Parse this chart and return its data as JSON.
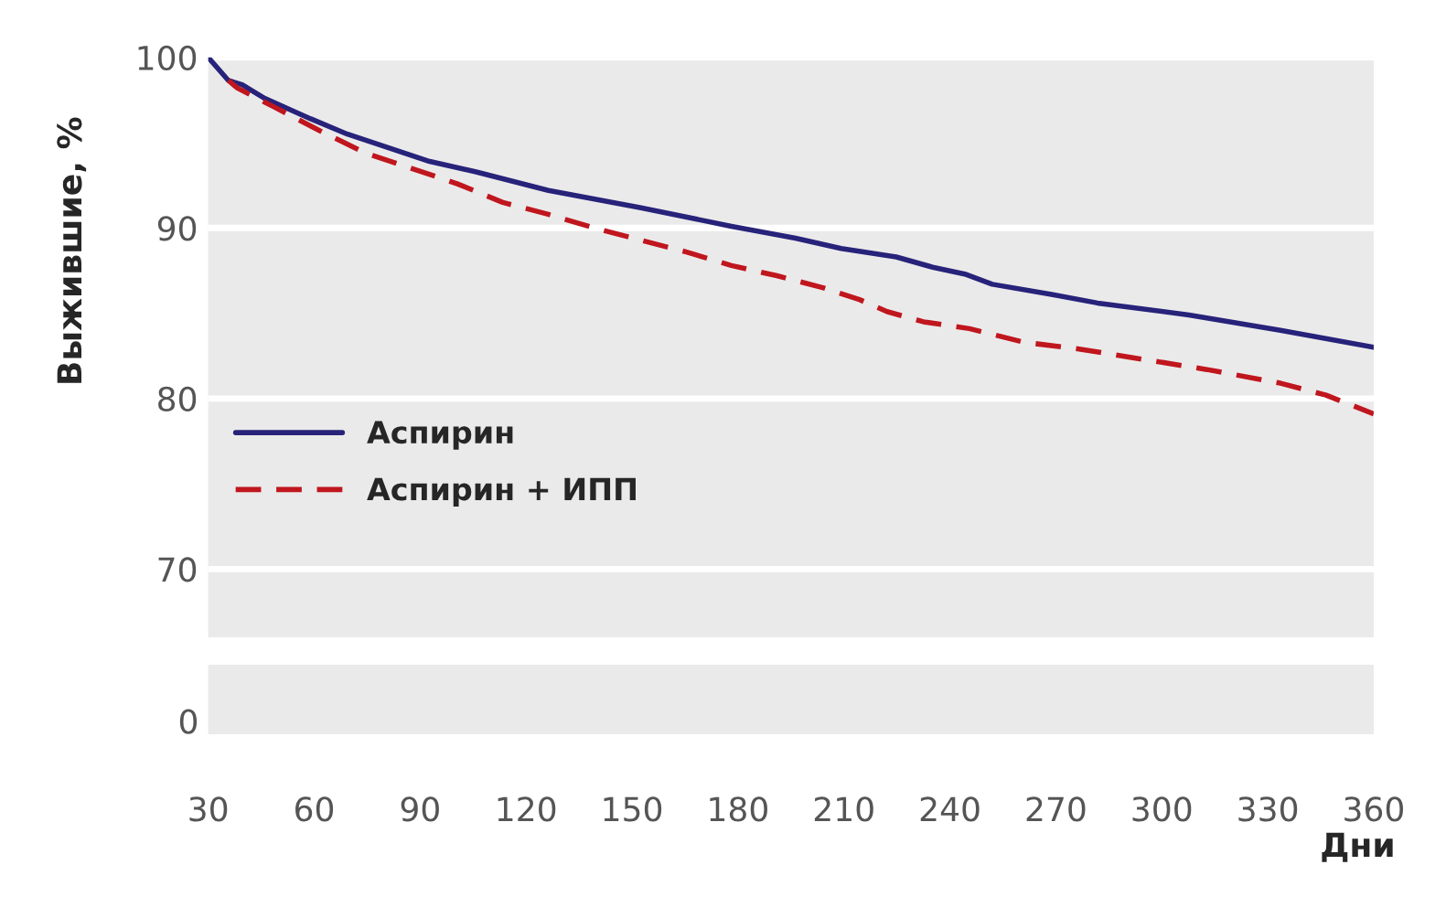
{
  "chart_data": {
    "type": "line",
    "ylabel": "Выжившие, %",
    "xlabel": "Дни",
    "xlim": [
      30,
      360
    ],
    "ylim": [
      66,
      100
    ],
    "yticks": [
      70,
      80,
      90,
      100
    ],
    "xticks": [
      30,
      60,
      90,
      120,
      150,
      180,
      210,
      240,
      270,
      300,
      330,
      360
    ],
    "grid": "y",
    "legend": "center left",
    "annotations": [
      "0"
    ],
    "series": [
      {
        "name": "Аспирин",
        "color": "#27237a",
        "line_style": "solid",
        "x": [
          30,
          35.7,
          39.6,
          46,
          59,
          69.4,
          79.7,
          92.7,
          105.6,
          126.3,
          152.2,
          178.1,
          196.3,
          209.2,
          224.8,
          235.1,
          244.2,
          252,
          268.8,
          281.8,
          307.7,
          333.6,
          360
        ],
        "values": [
          100,
          98.65,
          98.4,
          97.6,
          96.4,
          95.5,
          94.8,
          93.9,
          93.3,
          92.2,
          91.2,
          90.1,
          89.4,
          88.8,
          88.3,
          87.7,
          87.3,
          86.7,
          86.1,
          85.6,
          84.9,
          84.0,
          83.0
        ]
      },
      {
        "name": "Аспирин + ИПП",
        "color": "#c0161e",
        "line_style": "dashed",
        "x": [
          35.7,
          38.3,
          48.6,
          61.6,
          74.5,
          87.5,
          100.4,
          113.4,
          126.3,
          139.3,
          152.2,
          165.2,
          178.1,
          191,
          204,
          214.4,
          222.2,
          232.5,
          245.5,
          261,
          276.6,
          294.7,
          312.8,
          333.6,
          346.5,
          360
        ],
        "values": [
          98.65,
          98.2,
          97.1,
          95.7,
          94.4,
          93.5,
          92.6,
          91.5,
          90.8,
          90.0,
          89.3,
          88.6,
          87.8,
          87.2,
          86.5,
          85.8,
          85.1,
          84.5,
          84.1,
          83.3,
          82.9,
          82.3,
          81.7,
          80.9,
          80.2,
          79.1
        ]
      }
    ]
  }
}
